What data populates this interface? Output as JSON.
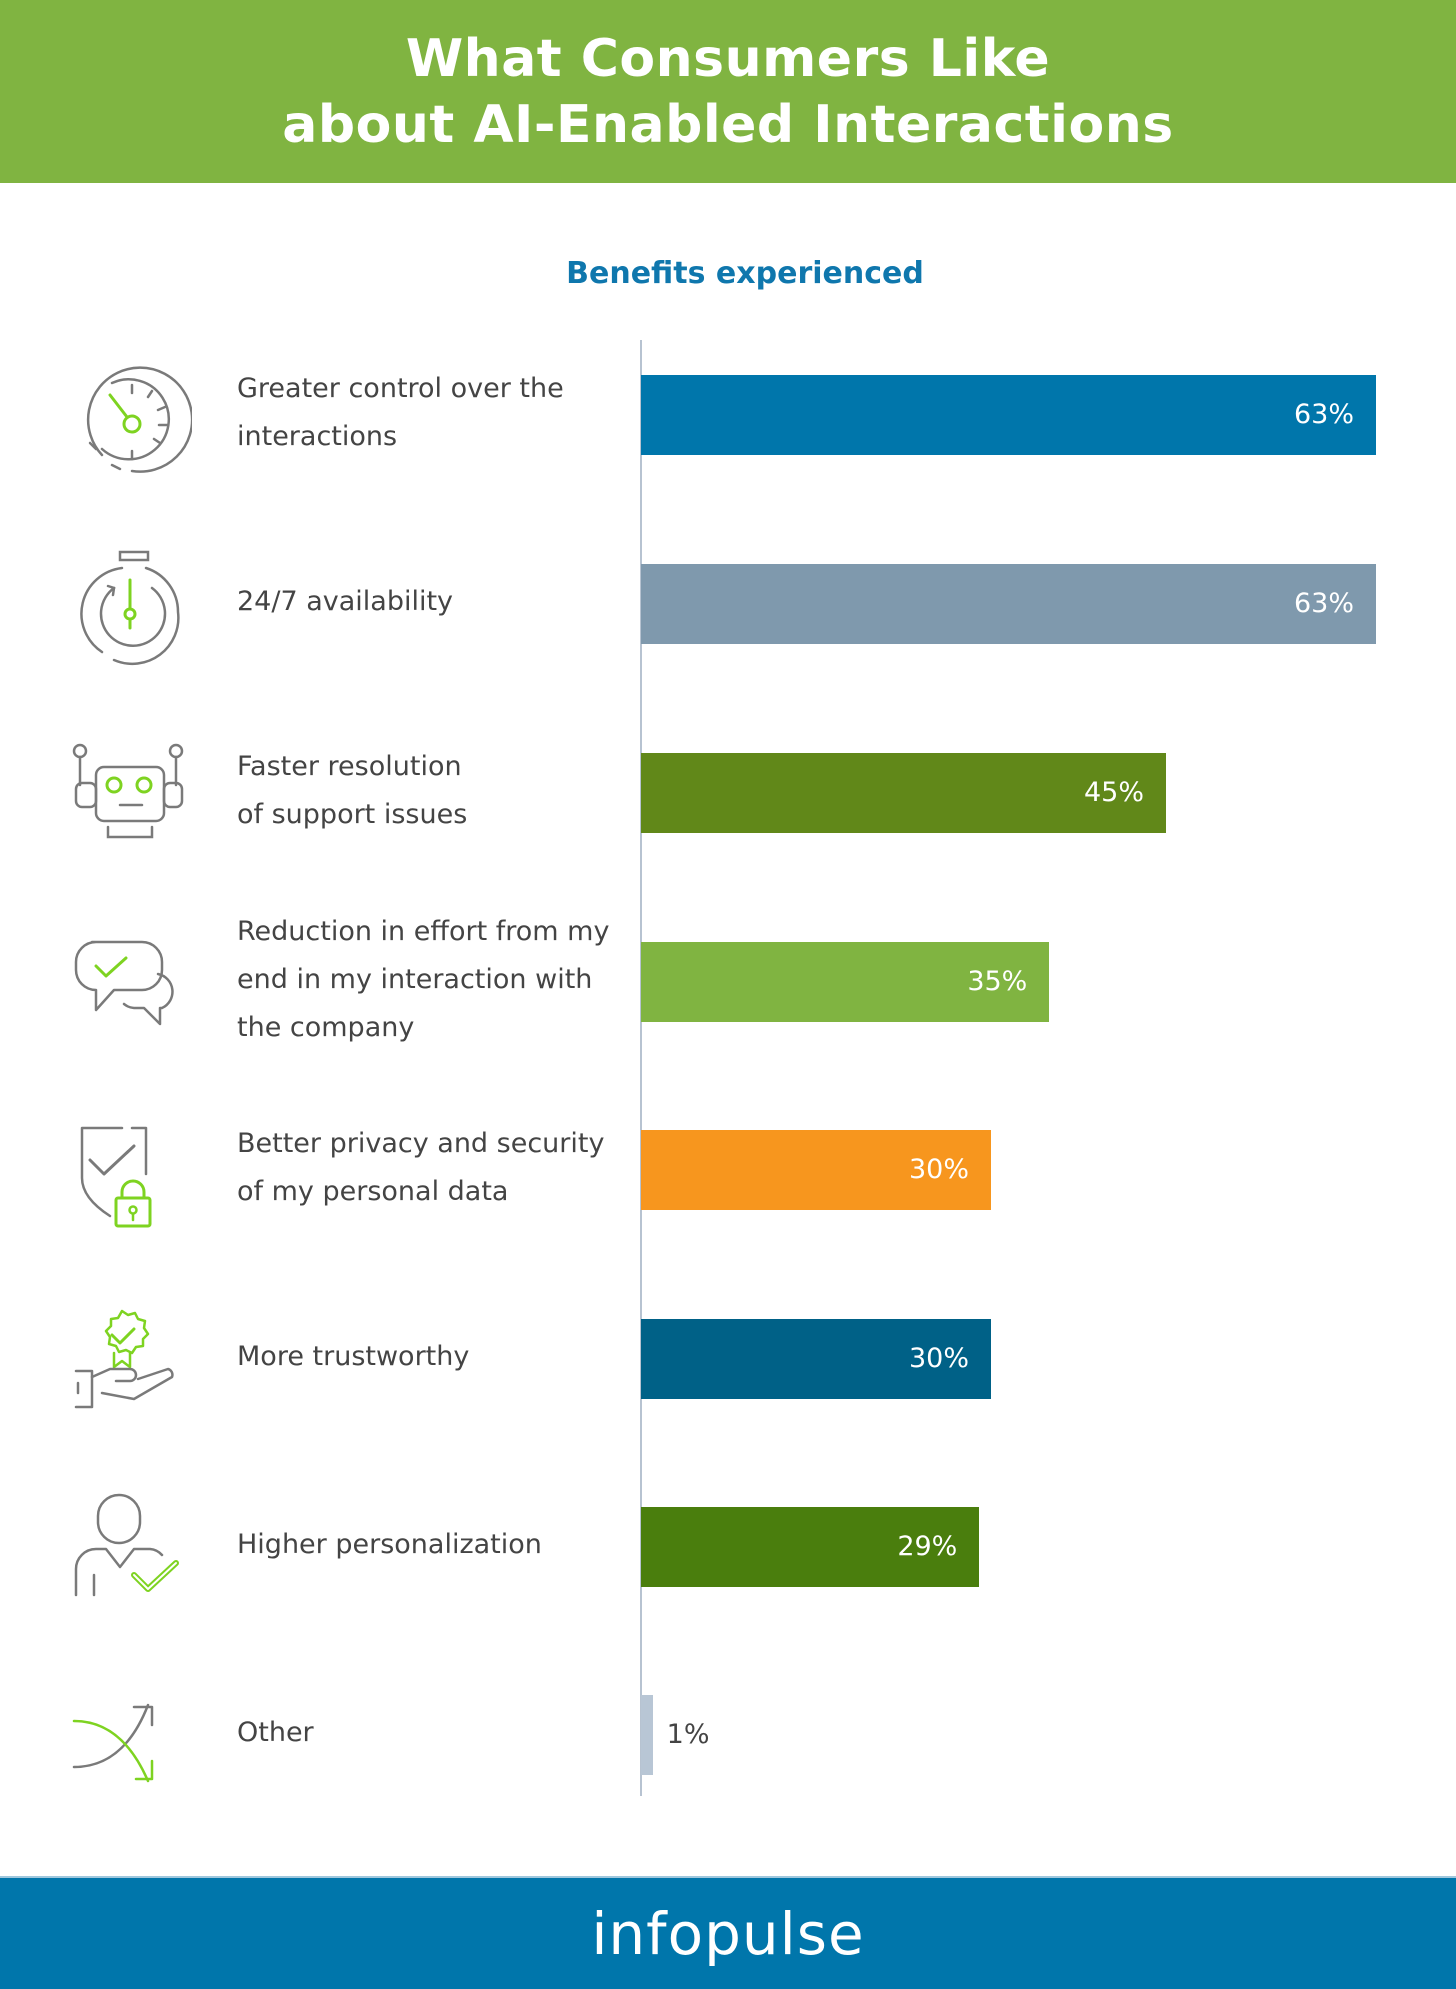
{
  "header": {
    "title_line1": "What Consumers Like",
    "title_line2": "about AI-Enabled Interactions"
  },
  "subtitle": "Benefits experienced",
  "footer": {
    "brand": "infopulse"
  },
  "colors": {
    "header_green": "#80b441",
    "subtitle_blue": "#0f77ad",
    "footer_blue": "#0076ab",
    "icon_gray": "#7a7a7a",
    "icon_green": "#7ed321"
  },
  "rows": [
    {
      "icon": "gauge-icon",
      "label_lines": [
        "Greater control over the",
        "interactions"
      ],
      "value": 63,
      "value_label": "63%",
      "color": "#0076ab"
    },
    {
      "icon": "stopwatch-icon",
      "label_lines": [
        "24/7 availability"
      ],
      "value": 63,
      "value_label": "63%",
      "color": "#7f99ad"
    },
    {
      "icon": "robot-icon",
      "label_lines": [
        "Faster resolution",
        "of support issues"
      ],
      "value": 45,
      "value_label": "45%",
      "color": "#618819"
    },
    {
      "icon": "chat-bubbles-check-icon",
      "label_lines": [
        "Reduction in effort from my",
        "end in my interaction with",
        "the company"
      ],
      "value": 35,
      "value_label": "35%",
      "color": "#80b441"
    },
    {
      "icon": "shield-lock-icon",
      "label_lines": [
        "Better privacy and security",
        "of my personal data"
      ],
      "value": 30,
      "value_label": "30%",
      "color": "#f7961e"
    },
    {
      "icon": "hand-badge-icon",
      "label_lines": [
        "More trustworthy"
      ],
      "value": 30,
      "value_label": "30%",
      "color": "#006187"
    },
    {
      "icon": "user-check-icon",
      "label_lines": [
        "Higher personalization"
      ],
      "value": 29,
      "value_label": "29%",
      "color": "#4a7e0d"
    },
    {
      "icon": "crossing-arrows-icon",
      "label_lines": [
        "Other"
      ],
      "value": 1,
      "value_label": "1%",
      "color": "#b8c6d5"
    }
  ],
  "chart_data": {
    "type": "bar",
    "orientation": "horizontal",
    "title": "What Consumers Like about AI-Enabled Interactions",
    "subtitle": "Benefits experienced",
    "categories": [
      "Greater control over the interactions",
      "24/7 availability",
      "Faster resolution of support issues",
      "Reduction in effort from my end in my interaction with the company",
      "Better privacy and security of my personal data",
      "More trustworthy",
      "Higher personalization",
      "Other"
    ],
    "values": [
      63,
      63,
      45,
      35,
      30,
      30,
      29,
      1
    ],
    "data_labels": [
      "63%",
      "63%",
      "45%",
      "35%",
      "30%",
      "30%",
      "29%",
      "1%"
    ],
    "unit": "%",
    "xlabel": "",
    "ylabel": "",
    "xlim": [
      0,
      63
    ],
    "grid": false,
    "legend": "none"
  }
}
